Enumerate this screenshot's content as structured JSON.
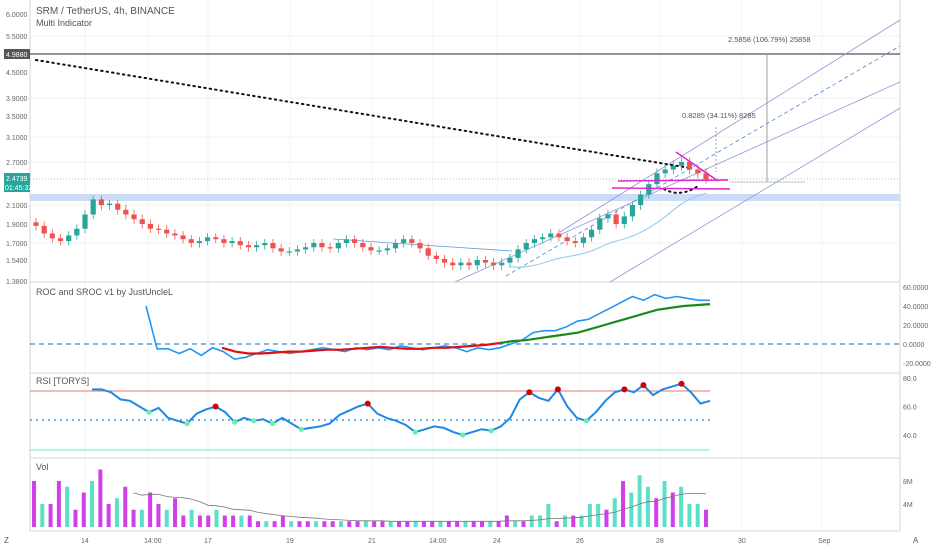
{
  "symbol_title": "SRM / TetherUS, 4h, BINANCE",
  "indicator_title": "Multi Indicator",
  "price_axis": {
    "ticks": [
      "6.0000",
      "5.5000",
      "4.9880",
      "4.5000",
      "3.9000",
      "3.5000",
      "3.1000",
      "2.7000",
      "2.4739",
      "2.1000",
      "1.9000",
      "1.7000",
      "1.5400",
      "1.3800"
    ],
    "marked_price": "4.9880",
    "last_price": "2.4739",
    "countdown": "01:45:32"
  },
  "measurements": {
    "big": "2.5858 (106.79%) 25858",
    "small": "0.8285 (34.11%) 8285"
  },
  "roc_pane": {
    "title": "ROC and SROC v1 by JustUncleL",
    "ticks": [
      "60.0000",
      "40.0000",
      "20.0000",
      "0.0000",
      "-20.0000"
    ]
  },
  "rsi_pane": {
    "title": "RSI [TORYS]",
    "ticks": [
      "80.0",
      "60.0",
      "40.0"
    ]
  },
  "vol_pane": {
    "title": "Vol",
    "ticks": [
      "8M",
      "4M"
    ]
  },
  "time_axis": [
    "14",
    "14:00",
    "17",
    "19",
    "21",
    "14:00",
    "24",
    "26",
    "28",
    "30",
    "Sep"
  ],
  "axis_buttons": {
    "left": "Z",
    "right": "A"
  },
  "colors": {
    "up": "#26a69a",
    "down": "#ef5350",
    "ma": "#8fc8e6",
    "channel": "#8a96d8",
    "pink": "#e020c8",
    "roc": "#2196f3",
    "sroc_up": "#1a8a1a",
    "sroc_down": "#e01010",
    "rsi": "#1e88e5",
    "band": "#c6d8f5",
    "vol_up": "#5ce0c8",
    "vol_down": "#d040e8"
  },
  "chart_data": {
    "type": "candlestick",
    "title": "SRM / TetherUS, 4h, BINANCE",
    "series": [
      {
        "name": "price_close",
        "values": [
          1.88,
          1.8,
          1.75,
          1.72,
          1.78,
          1.85,
          2.0,
          2.18,
          2.1,
          2.12,
          2.05,
          2.0,
          1.95,
          1.9,
          1.85,
          1.84,
          1.8,
          1.78,
          1.74,
          1.7,
          1.72,
          1.76,
          1.74,
          1.7,
          1.72,
          1.68,
          1.66,
          1.68,
          1.7,
          1.65,
          1.62,
          1.62,
          1.64,
          1.66,
          1.7,
          1.66,
          1.65,
          1.7,
          1.74,
          1.7,
          1.66,
          1.63,
          1.63,
          1.65,
          1.7,
          1.74,
          1.7,
          1.65,
          1.58,
          1.55,
          1.52,
          1.5,
          1.52,
          1.5,
          1.54,
          1.52,
          1.5,
          1.52,
          1.56,
          1.64,
          1.7,
          1.74,
          1.76,
          1.8,
          1.76,
          1.72,
          1.7,
          1.76,
          1.84,
          1.96,
          2.0,
          1.9,
          1.98,
          2.1,
          2.25,
          2.4,
          2.55,
          2.6,
          2.65,
          2.7,
          2.6,
          2.55,
          2.47
        ]
      },
      {
        "name": "roc",
        "values": [
          40,
          -5,
          -5,
          -10,
          -5,
          -12,
          -4,
          -8,
          -16,
          -14,
          -10,
          -6,
          -8,
          -10,
          -8,
          -6,
          -4,
          -6,
          -8,
          -4,
          -6,
          -4,
          -6,
          -2,
          -4,
          -6,
          -4,
          -2,
          -4,
          -8,
          -4,
          -6,
          -4,
          0,
          4,
          12,
          14,
          14,
          18,
          24,
          26,
          32,
          38,
          44,
          50,
          46,
          52,
          48,
          50,
          48,
          46,
          46
        ]
      },
      {
        "name": "sroc",
        "values": [
          -4,
          -8,
          -10,
          -10,
          -9,
          -8,
          -8,
          -7,
          -6,
          -6,
          -5,
          -4,
          -3,
          -4,
          -5,
          -5,
          -4,
          -4,
          -3,
          -2,
          -1,
          1,
          3,
          4,
          6,
          8,
          10,
          12,
          16,
          20,
          24,
          28,
          32,
          36,
          38,
          40,
          41,
          42
        ]
      },
      {
        "name": "rsi",
        "values": [
          72,
          72,
          70,
          65,
          64,
          60,
          56,
          59,
          52,
          50,
          48,
          55,
          58,
          60,
          56,
          49,
          52,
          50,
          51,
          48,
          52,
          48,
          44,
          45,
          46,
          48,
          54,
          57,
          60,
          62,
          55,
          52,
          50,
          47,
          42,
          44,
          46,
          45,
          42,
          40,
          42,
          44,
          43,
          46,
          52,
          65,
          70,
          66,
          64,
          72,
          60,
          52,
          50,
          56,
          64,
          70,
          72,
          70,
          75,
          68,
          72,
          74,
          76,
          70,
          62,
          64
        ]
      },
      {
        "name": "volume_millions",
        "values": [
          8,
          4,
          4,
          8,
          7,
          3,
          6,
          8,
          10,
          4,
          5,
          7,
          3,
          3,
          6,
          4,
          3,
          5,
          2,
          3,
          2,
          2,
          3,
          2,
          2,
          2,
          2,
          1,
          1,
          1,
          2,
          1,
          1,
          1,
          1,
          1,
          1,
          1,
          1,
          1,
          1,
          1,
          1,
          1,
          1,
          1,
          1,
          1,
          1,
          1,
          1,
          1,
          1,
          1,
          1,
          1,
          1,
          2,
          1,
          1,
          2,
          2,
          4,
          1,
          2,
          2,
          2,
          4,
          4,
          3,
          5,
          8,
          6,
          9,
          7,
          5,
          8,
          6,
          7,
          4,
          4,
          3
        ]
      }
    ],
    "marked_level": 4.988,
    "last_price": 2.4739,
    "rsi_levels": [
      70,
      50,
      30
    ],
    "grid": true
  }
}
